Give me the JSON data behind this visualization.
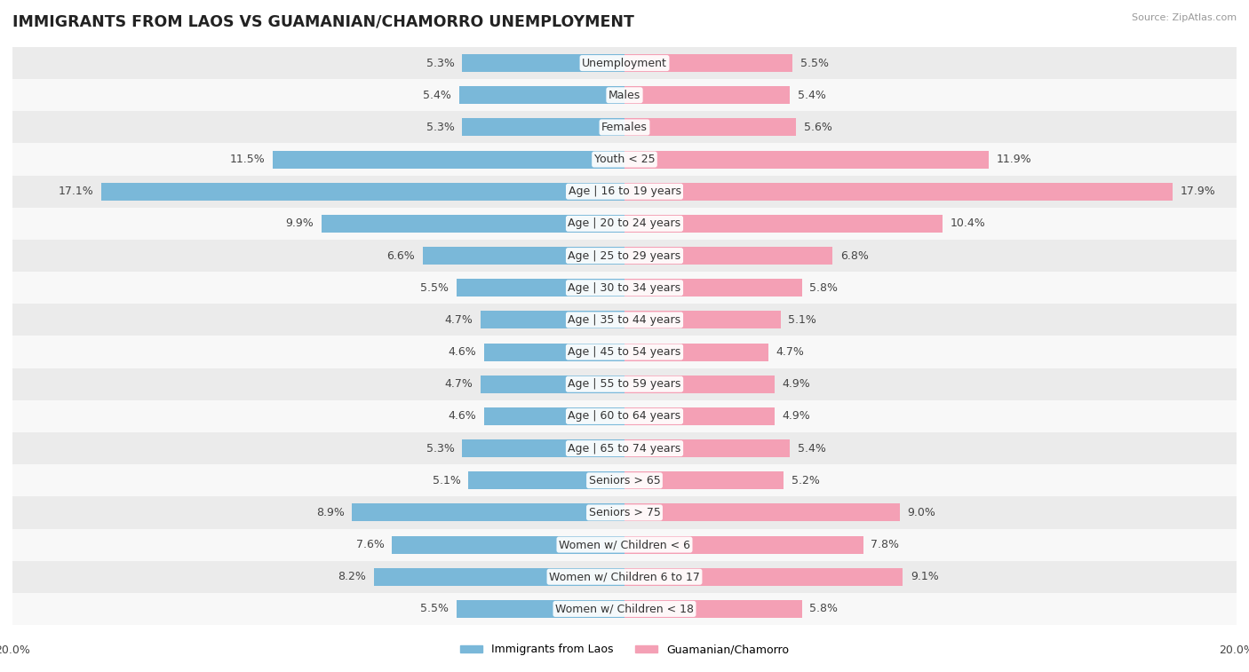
{
  "title": "IMMIGRANTS FROM LAOS VS GUAMANIAN/CHAMORRO UNEMPLOYMENT",
  "source": "Source: ZipAtlas.com",
  "categories": [
    "Unemployment",
    "Males",
    "Females",
    "Youth < 25",
    "Age | 16 to 19 years",
    "Age | 20 to 24 years",
    "Age | 25 to 29 years",
    "Age | 30 to 34 years",
    "Age | 35 to 44 years",
    "Age | 45 to 54 years",
    "Age | 55 to 59 years",
    "Age | 60 to 64 years",
    "Age | 65 to 74 years",
    "Seniors > 65",
    "Seniors > 75",
    "Women w/ Children < 6",
    "Women w/ Children 6 to 17",
    "Women w/ Children < 18"
  ],
  "left_values": [
    5.3,
    5.4,
    5.3,
    11.5,
    17.1,
    9.9,
    6.6,
    5.5,
    4.7,
    4.6,
    4.7,
    4.6,
    5.3,
    5.1,
    8.9,
    7.6,
    8.2,
    5.5
  ],
  "right_values": [
    5.5,
    5.4,
    5.6,
    11.9,
    17.9,
    10.4,
    6.8,
    5.8,
    5.1,
    4.7,
    4.9,
    4.9,
    5.4,
    5.2,
    9.0,
    7.8,
    9.1,
    5.8
  ],
  "left_color": "#7ab8d9",
  "right_color": "#f4a0b5",
  "background_row_light": "#ebebeb",
  "background_row_white": "#f8f8f8",
  "axis_limit": 20.0,
  "legend_left": "Immigrants from Laos",
  "legend_right": "Guamanian/Chamorro",
  "label_fontsize": 9.0,
  "title_fontsize": 12.5,
  "bar_height": 0.55
}
